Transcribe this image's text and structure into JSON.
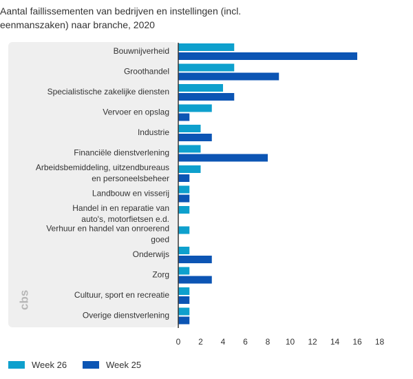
{
  "title_line1": "Aantal faillissementen van bedrijven en instellingen (incl.",
  "title_line2": "eenmanszaken) naar branche, 2020",
  "colors": {
    "week26": "#0ea0cd",
    "week25": "#0c55b4",
    "panel": "#efefef",
    "axis": "#333333"
  },
  "logo": {
    "icon": "cbs-logo-icon",
    "text": "cbs"
  },
  "chart_data": {
    "type": "bar",
    "orientation": "horizontal",
    "categories": [
      [
        "Bouwnijverheid"
      ],
      [
        "Groothandel"
      ],
      [
        "Specialistische zakelijke diensten"
      ],
      [
        "Vervoer en opslag"
      ],
      [
        "Industrie"
      ],
      [
        "Financiële dienstverlening"
      ],
      [
        "Arbeidsbemiddeling, uitzendbureaus",
        "en personeelsbeheer"
      ],
      [
        "Landbouw en visserij"
      ],
      [
        "Handel in en reparatie van",
        "auto's, motorfietsen e.d."
      ],
      [
        "Verhuur en handel van onroerend",
        "goed"
      ],
      [
        "Onderwijs"
      ],
      [
        "Zorg"
      ],
      [
        "Cultuur, sport en recreatie"
      ],
      [
        "Overige dienstverlening"
      ]
    ],
    "series": [
      {
        "name": "Week 26",
        "color": "#0ea0cd",
        "values": [
          5,
          5,
          4,
          3,
          2,
          2,
          2,
          1,
          1,
          1,
          1,
          1,
          1,
          1
        ]
      },
      {
        "name": "Week 25",
        "color": "#0c55b4",
        "values": [
          16,
          9,
          5,
          1,
          3,
          8,
          1,
          1,
          0,
          0,
          3,
          3,
          1,
          1
        ]
      }
    ],
    "xlim": [
      0,
      18
    ],
    "xticks": [
      0,
      2,
      4,
      6,
      8,
      10,
      12,
      14,
      16,
      18
    ],
    "grid": false,
    "legend_position": "bottom-left"
  }
}
